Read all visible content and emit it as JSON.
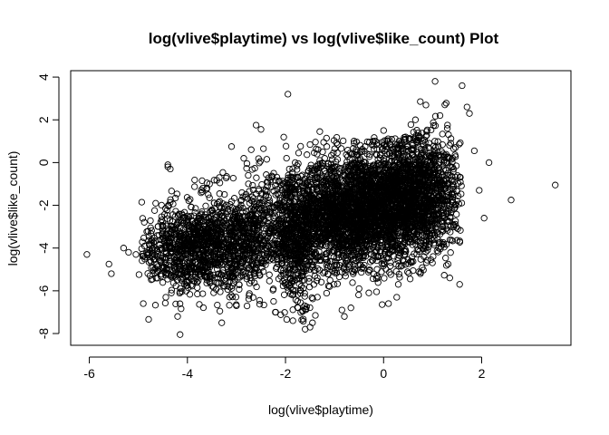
{
  "chart_data": {
    "type": "scatter",
    "title": "log(vlive$playtime) vs log(vlive$like_count) Plot",
    "xlabel": "log(vlive$playtime)",
    "ylabel": "log(vlive$like_count)",
    "xlim": [
      -6.38,
      3.82
    ],
    "ylim": [
      -8.55,
      4.3
    ],
    "x_ticks": [
      -6,
      -4,
      -2,
      0,
      2
    ],
    "y_ticks": [
      -8,
      -6,
      -4,
      -2,
      0,
      2,
      4
    ],
    "x_tick_labels": [
      "-6",
      "-4",
      "-2",
      "0",
      "2"
    ],
    "y_tick_labels": [
      "-8",
      "-6",
      "-4",
      "-2",
      "0",
      "2",
      "4"
    ],
    "marker": "open circle",
    "grid": false,
    "series": [
      {
        "points": [
          [
            -6.05,
            -4.3
          ],
          [
            -5.6,
            -4.75
          ],
          [
            -5.55,
            -5.2
          ],
          [
            -5.2,
            -4.2
          ],
          [
            -5.05,
            -4.3
          ],
          [
            -4.9,
            -6.6
          ],
          [
            -4.75,
            -3.05
          ],
          [
            -4.7,
            -4.9
          ],
          [
            -4.6,
            -3.0
          ],
          [
            -4.4,
            -0.2
          ],
          [
            -4.4,
            -0.1
          ],
          [
            -4.35,
            -0.3
          ],
          [
            -4.2,
            -7.2
          ],
          [
            -4.15,
            -8.05
          ],
          [
            -4.15,
            -6.05
          ],
          [
            -4.05,
            -4.25
          ],
          [
            -3.95,
            -4.7
          ],
          [
            -3.9,
            -4.0
          ],
          [
            -3.8,
            -5.6
          ],
          [
            -3.7,
            -0.85
          ],
          [
            -3.6,
            -0.95
          ],
          [
            -3.55,
            -1.0
          ],
          [
            -3.45,
            -3.1
          ],
          [
            -3.35,
            -0.7
          ],
          [
            -3.3,
            -7.5
          ],
          [
            -3.2,
            -0.65
          ],
          [
            -3.1,
            0.75
          ],
          [
            -3.0,
            -6.7
          ],
          [
            -2.85,
            0.2
          ],
          [
            -2.7,
            0.6
          ],
          [
            -2.6,
            1.75
          ],
          [
            -2.5,
            1.55
          ],
          [
            -2.45,
            0.65
          ],
          [
            -2.35,
            -2.0
          ],
          [
            -2.2,
            -7.0
          ],
          [
            -2.05,
            -1.0
          ],
          [
            -1.95,
            3.2
          ],
          [
            -1.9,
            -5.4
          ],
          [
            -1.85,
            -7.4
          ],
          [
            -1.6,
            -7.8
          ],
          [
            -1.5,
            -7.7
          ],
          [
            -1.45,
            -7.5
          ],
          [
            -1.4,
            -5.3
          ],
          [
            -1.35,
            -6.3
          ],
          [
            -1.3,
            1.45
          ],
          [
            -1.2,
            -3.3
          ],
          [
            -1.1,
            -5.8
          ],
          [
            -0.95,
            -0.2
          ],
          [
            -0.85,
            -6.9
          ],
          [
            -0.8,
            -7.2
          ],
          [
            -0.6,
            0.9
          ],
          [
            -0.5,
            -5.9
          ],
          [
            -0.3,
            -6.1
          ],
          [
            -0.15,
            0.4
          ],
          [
            0.0,
            1.5
          ],
          [
            0.1,
            -6.6
          ],
          [
            0.3,
            -5.7
          ],
          [
            0.45,
            1.1
          ],
          [
            0.65,
            2.0
          ],
          [
            0.8,
            -0.8
          ],
          [
            0.95,
            0.25
          ],
          [
            1.05,
            3.8
          ],
          [
            1.15,
            2.2
          ],
          [
            1.25,
            2.7
          ],
          [
            1.35,
            -5.4
          ],
          [
            1.55,
            -5.7
          ],
          [
            1.6,
            3.6
          ],
          [
            1.7,
            2.6
          ],
          [
            1.75,
            2.3
          ],
          [
            1.85,
            0.55
          ],
          [
            1.95,
            -1.3
          ],
          [
            2.05,
            -2.6
          ],
          [
            2.15,
            0.0
          ],
          [
            2.6,
            -1.75
          ],
          [
            3.5,
            -1.05
          ],
          [
            -2.6,
            -2.5
          ],
          [
            -2.9,
            -3.5
          ],
          [
            -3.5,
            -2.2
          ],
          [
            -4.6,
            -5.1
          ],
          [
            -5.3,
            -4.0
          ],
          [
            -1.2,
            0.2
          ],
          [
            -0.6,
            0.4
          ],
          [
            0.2,
            0.6
          ],
          [
            0.8,
            1.0
          ],
          [
            1.3,
            1.6
          ]
        ]
      }
    ],
    "clusters": [
      {
        "cx": -3.6,
        "cy": -3.9,
        "sx": 0.55,
        "sy": 1.05,
        "n": 850
      },
      {
        "cx": -2.7,
        "cy": -3.4,
        "sx": 0.45,
        "sy": 1.2,
        "n": 450
      },
      {
        "cx": -1.1,
        "cy": -2.6,
        "sx": 0.7,
        "sy": 1.25,
        "n": 1500
      },
      {
        "cx": -0.1,
        "cy": -2.0,
        "sx": 0.65,
        "sy": 1.3,
        "n": 1700
      },
      {
        "cx": 0.7,
        "cy": -1.4,
        "sx": 0.45,
        "sy": 1.35,
        "n": 1000
      },
      {
        "cx": -1.75,
        "cy": -3.9,
        "sx": 0.2,
        "sy": 1.6,
        "n": 350
      },
      {
        "cx": -4.3,
        "cy": -4.3,
        "sx": 0.35,
        "sy": 0.9,
        "n": 220
      }
    ]
  }
}
